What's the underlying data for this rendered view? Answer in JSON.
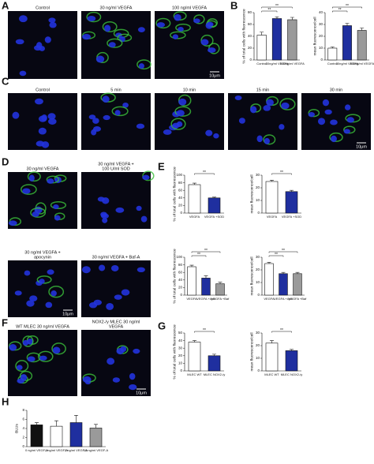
{
  "figure": {
    "letters": [
      "A",
      "B",
      "C",
      "D",
      "E",
      "F",
      "G",
      "H"
    ],
    "images": [
      {
        "label": [
          "Control"
        ]
      },
      {
        "label": [
          "30 ng/ml VEGFA"
        ]
      },
      {
        "label": [
          "100 ng/ml VEGFA"
        ],
        "scale": "10μm"
      },
      {
        "label": [
          "Control"
        ]
      },
      {
        "label": [
          "5 min"
        ]
      },
      {
        "label": [
          "10 min"
        ]
      },
      {
        "label": [
          "15 min"
        ]
      },
      {
        "label": [
          "30 min"
        ],
        "scale": "10μm"
      },
      {
        "label": [
          "30 ng/ml VEGFA"
        ]
      },
      {
        "label": [
          "30 ng/ml VEGFA +",
          "100 U/ml SOD"
        ]
      },
      {
        "label": [
          "30 ng/ml VEGFA +",
          "apocynin"
        ],
        "scale": "10μm"
      },
      {
        "label": [
          "30 ng/ml VEGFA + Baf-A"
        ]
      },
      {
        "label": [
          "WT MLEC 30 ng/ml VEGFA"
        ]
      },
      {
        "label": [
          "NOX2-/y MLEC 30 ng/ml",
          "VEGFA"
        ],
        "scale": "10μm"
      }
    ]
  },
  "chart_data": [
    {
      "type": "bar",
      "ylabel": "% of total cells with fluorescence",
      "categories": [
        "Control",
        "30ng/ml VEGFA",
        "100ng/ml VEGFA"
      ],
      "values": [
        42,
        70,
        68
      ],
      "errors": [
        5,
        3,
        4
      ],
      "colors": [
        "#ffffff",
        "#1f2f9f",
        "#9a9a9a"
      ],
      "ylim": [
        0,
        80
      ],
      "yticks": [
        0,
        20,
        40,
        60,
        80
      ],
      "annotations": [
        "**",
        "**"
      ]
    },
    {
      "type": "bar",
      "ylabel": "mean fluorescence/cell",
      "categories": [
        "Control",
        "30ng/ml VEGFA",
        "100ng/ml VEGFA"
      ],
      "values": [
        10,
        29,
        25
      ],
      "errors": [
        1,
        2,
        2
      ],
      "colors": [
        "#ffffff",
        "#1f2f9f",
        "#9a9a9a"
      ],
      "ylim": [
        0,
        40
      ],
      "yticks": [
        0,
        10,
        20,
        30,
        40
      ],
      "annotations": [
        "**",
        "**"
      ]
    },
    {
      "type": "bar",
      "ylabel": "% of total cells with fluorescence",
      "categories": [
        "VEGFA",
        "VEGFA +SOD"
      ],
      "values": [
        75,
        40
      ],
      "errors": [
        4,
        2
      ],
      "colors": [
        "#ffffff",
        "#1f2f9f"
      ],
      "ylim": [
        0,
        100
      ],
      "yticks": [
        0,
        20,
        40,
        60,
        80,
        100
      ],
      "annotations": [
        "**"
      ]
    },
    {
      "type": "bar",
      "ylabel": "mean fluorescence/cell",
      "categories": [
        "VEGFA",
        "VEGFA +SOD"
      ],
      "values": [
        25,
        17
      ],
      "errors": [
        1,
        1
      ],
      "colors": [
        "#ffffff",
        "#1f2f9f"
      ],
      "ylim": [
        0,
        30
      ],
      "yticks": [
        0,
        10,
        20,
        30
      ],
      "annotations": [
        "**"
      ]
    },
    {
      "type": "bar",
      "ylabel": "% of total cells with fluorescence",
      "categories": [
        "VEGFA",
        "VEGFA +Apo",
        "VEGFA +Baf"
      ],
      "values": [
        75,
        45,
        30
      ],
      "errors": [
        4,
        6,
        4
      ],
      "colors": [
        "#ffffff",
        "#1f2f9f",
        "#9a9a9a"
      ],
      "ylim": [
        0,
        100
      ],
      "yticks": [
        0,
        20,
        40,
        60,
        80,
        100
      ],
      "annotations": [
        "**",
        "**"
      ]
    },
    {
      "type": "bar",
      "ylabel": "mean fluorescence/cell",
      "categories": [
        "VEGFA",
        "VEGFA +Apo",
        "VEGFA +Baf"
      ],
      "values": [
        25,
        17,
        17
      ],
      "errors": [
        1,
        1,
        1
      ],
      "colors": [
        "#ffffff",
        "#1f2f9f",
        "#9a9a9a"
      ],
      "ylim": [
        0,
        30
      ],
      "yticks": [
        0,
        10,
        20,
        30
      ],
      "annotations": [
        "**",
        "**"
      ]
    },
    {
      "type": "bar",
      "ylabel": "% of total cells with fluorescence",
      "categories": [
        "MLEC WT",
        "MLEC NOX2-/y"
      ],
      "values": [
        38,
        20
      ],
      "errors": [
        2,
        2
      ],
      "colors": [
        "#ffffff",
        "#1f2f9f"
      ],
      "ylim": [
        0,
        50
      ],
      "yticks": [
        0,
        10,
        20,
        30,
        40,
        50
      ],
      "annotations": [
        "**"
      ]
    },
    {
      "type": "bar",
      "ylabel": "mean fluorescence/cell",
      "categories": [
        "MLEC WT",
        "MLEC NOX2-/y"
      ],
      "values": [
        22,
        16
      ],
      "errors": [
        2,
        1
      ],
      "colors": [
        "#ffffff",
        "#1f2f9f"
      ],
      "ylim": [
        0,
        30
      ],
      "yticks": [
        0,
        10,
        20,
        30
      ],
      "annotations": [
        "**"
      ]
    },
    {
      "type": "bar",
      "ylabel": "BLUs",
      "categories": [
        "0 ng/ml VEGF-A",
        "1 ng/ml VEGF-A",
        "3 ng/ml VEGF-A",
        "10 ng/ml VEGF-A"
      ],
      "values": [
        4.8,
        4.5,
        5.3,
        4.1
      ],
      "errors": [
        0.5,
        1.2,
        1.6,
        0.8
      ],
      "colors": [
        "#111111",
        "#ffffff",
        "#1f2f9f",
        "#9a9a9a"
      ],
      "ylim": [
        0,
        8
      ],
      "yticks": [
        0,
        2,
        4,
        6,
        8
      ],
      "annotations": []
    }
  ]
}
